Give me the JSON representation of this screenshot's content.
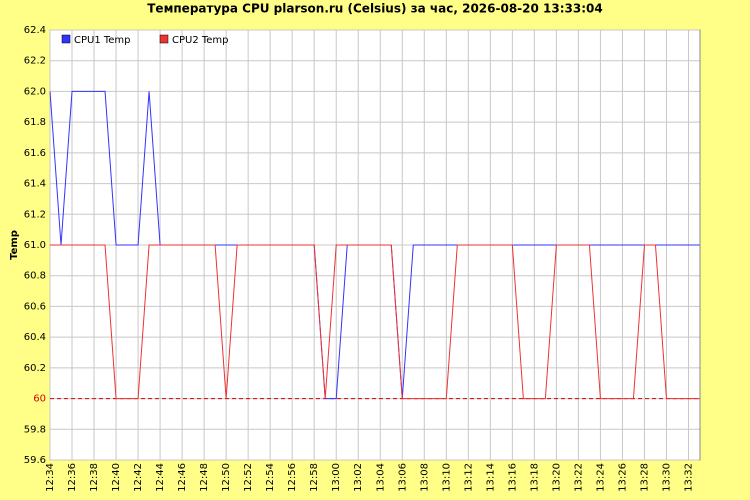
{
  "chart_data": {
    "type": "line",
    "title": "Температура CPU plarson.ru (Celsius) за час, 2026-08-20 13:33:04",
    "y_label": "Temp",
    "categories": [
      "12:34",
      null,
      "12:36",
      null,
      "12:38",
      null,
      "12:40",
      null,
      "12:42",
      null,
      "12:44",
      null,
      "12:46",
      null,
      "12:48",
      null,
      "12:50",
      null,
      "12:52",
      null,
      "12:54",
      null,
      "12:56",
      null,
      "12:58",
      null,
      "13:00",
      null,
      "13:02",
      null,
      "13:04",
      null,
      "13:06",
      null,
      "13:08",
      null,
      "13:10",
      null,
      "13:12",
      null,
      "13:14",
      null,
      "13:16",
      null,
      "13:18",
      null,
      "13:20",
      null,
      "13:22",
      null,
      "13:24",
      null,
      "13:26",
      null,
      "13:28",
      null,
      "13:30",
      null,
      "13:32",
      null
    ],
    "series": [
      {
        "name": "CPU1 Temp",
        "color": "#3333ff",
        "values": [
          62,
          61,
          62,
          62,
          62,
          62,
          61,
          61,
          61,
          62,
          61,
          61,
          61,
          61,
          61,
          61,
          61,
          61,
          61,
          61,
          61,
          61,
          61,
          61,
          61,
          60,
          60,
          61,
          61,
          61,
          61,
          61,
          60,
          61,
          61,
          61,
          61,
          61,
          61,
          61,
          61,
          61,
          61,
          61,
          61,
          61,
          61,
          61,
          61,
          61,
          61,
          61,
          61,
          61,
          61,
          61,
          61,
          61,
          61,
          61
        ]
      },
      {
        "name": "CPU2 Temp",
        "color": "#ee3333",
        "values": [
          61,
          61,
          61,
          61,
          61,
          61,
          60,
          60,
          60,
          61,
          61,
          61,
          61,
          61,
          61,
          61,
          60,
          61,
          61,
          61,
          61,
          61,
          61,
          61,
          61,
          60,
          61,
          61,
          61,
          61,
          61,
          61,
          60,
          60,
          60,
          60,
          60,
          61,
          61,
          61,
          61,
          61,
          61,
          60,
          60,
          60,
          61,
          61,
          61,
          61,
          60,
          60,
          60,
          60,
          61,
          61,
          60,
          60,
          60,
          60
        ]
      }
    ],
    "threshold": 60,
    "threshold_color": "#dd0000",
    "ylim": [
      59.6,
      62.4
    ],
    "yticks": [
      59.6,
      59.8,
      60,
      60.2,
      60.4,
      60.6,
      60.8,
      {
        "value": 61,
        "label": "61.0"
      },
      61.2,
      61.4,
      61.6,
      61.8,
      {
        "value": 62,
        "label": "62.0"
      },
      62.2,
      62.4
    ],
    "grid": true
  }
}
